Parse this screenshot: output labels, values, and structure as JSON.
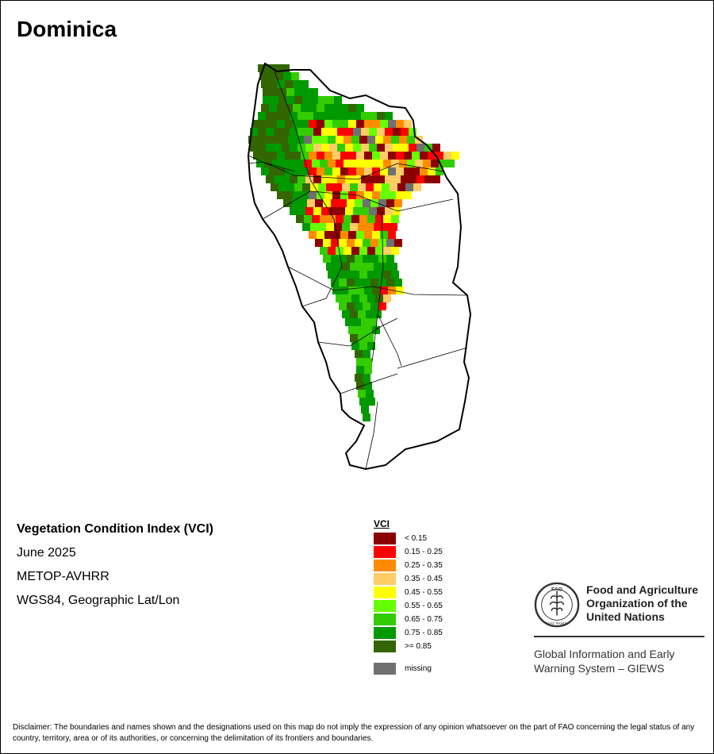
{
  "map": {
    "title": "Dominica",
    "product": "Vegetation Condition Index (VCI)",
    "period": "June 2025",
    "sensor": "METOP-AVHRR",
    "projection": "WGS84, Geographic Lat/Lon"
  },
  "legend": {
    "title": "VCI",
    "classes": [
      {
        "label": "< 0.15",
        "color": "#8B0000"
      },
      {
        "label": "0.15 - 0.25",
        "color": "#FF0000"
      },
      {
        "label": "0.25 - 0.35",
        "color": "#FF8C00"
      },
      {
        "label": "0.35 - 0.45",
        "color": "#FFCC66"
      },
      {
        "label": "0.45 - 0.55",
        "color": "#FFFF00"
      },
      {
        "label": "0.55 - 0.65",
        "color": "#66FF00"
      },
      {
        "label": "0.65 - 0.75",
        "color": "#33CC00"
      },
      {
        "label": "0.75 - 0.85",
        "color": "#009900"
      },
      {
        "label": ">= 0.85",
        "color": "#336600"
      }
    ],
    "missing": {
      "label": "missing",
      "color": "#707070"
    }
  },
  "organization": {
    "logo_icon": "fao-logo-icon",
    "logo_text": "FAO",
    "logo_motto": "FIAT PANIS",
    "name_lines": [
      "Food and Agriculture",
      "Organization of the",
      "United Nations"
    ],
    "system_lines": [
      "Global Information and Early",
      "Warning System – GIEWS"
    ]
  },
  "disclaimer": "Disclaimer: The boundaries and names shown and the designations used on this map do not imply the expression of any opinion whatsoever on the part of FAO concerning the legal status of any country, territory, area or of its authorities, or concerning the delimitation of its frontiers and boundaries."
}
